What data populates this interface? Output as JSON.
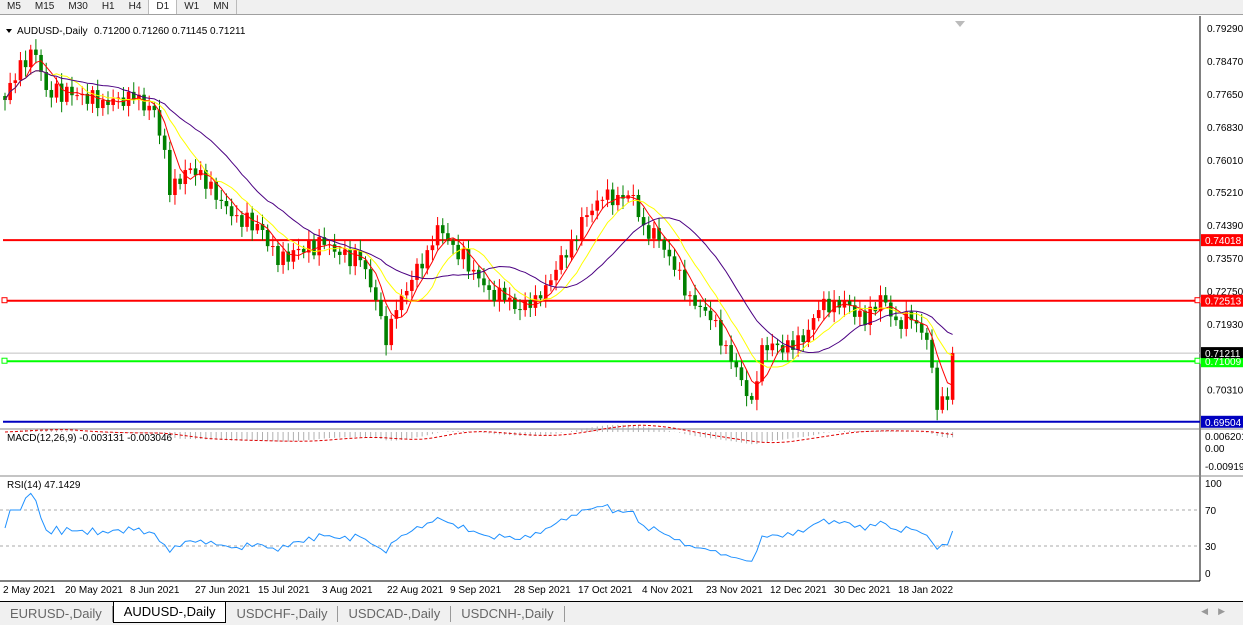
{
  "timeframes": [
    "M5",
    "M15",
    "M30",
    "H1",
    "H4",
    "D1",
    "W1",
    "MN"
  ],
  "selected_timeframe": "D1",
  "header": {
    "symbol": "AUDUSD-,Daily",
    "ohlc": "0.71200 0.71260 0.71145 0.71211"
  },
  "macd_label": "MACD(12,26,9) -0.003131 -0.003046",
  "rsi_label": "RSI(14) 47.1429",
  "tabs": [
    "EURUSD-,Daily",
    "AUDUSD-,Daily",
    "USDCHF-,Daily",
    "USDCAD-,Daily",
    "USDCNH-,Daily"
  ],
  "active_tab": "AUDUSD-,Daily",
  "colors": {
    "up": "#ff0000",
    "down": "#008000",
    "ma_fast": "#ff0000",
    "ma_mid": "#ffff00",
    "ma_slow": "#4b0082",
    "rsi": "#1e90ff"
  },
  "chart_data": {
    "type": "candlestick",
    "price_ticks": [
      "0.79290",
      "0.78470",
      "0.77650",
      "0.76830",
      "0.76010",
      "0.75210",
      "0.74390",
      "0.73570",
      "0.72750",
      "0.71930",
      "0.70310"
    ],
    "date_ticks": [
      "2 May 2021",
      "20 May 2021",
      "8 Jun 2021",
      "27 Jun 2021",
      "15 Jul 2021",
      "3 Aug 2021",
      "22 Aug 2021",
      "9 Sep 2021",
      "28 Sep 2021",
      "17 Oct 2021",
      "4 Nov 2021",
      "23 Nov 2021",
      "12 Dec 2021",
      "30 Dec 2021",
      "18 Jan 2022"
    ],
    "close_anchors": [
      [
        0,
        0.775
      ],
      [
        3,
        0.7849
      ],
      [
        6,
        0.7862
      ],
      [
        8,
        0.7775
      ],
      [
        13,
        0.7762
      ],
      [
        19,
        0.775
      ],
      [
        25,
        0.775
      ],
      [
        29,
        0.7725
      ],
      [
        31,
        0.7626
      ],
      [
        32,
        0.7514
      ],
      [
        35,
        0.7576
      ],
      [
        38,
        0.7576
      ],
      [
        41,
        0.7502
      ],
      [
        45,
        0.7464
      ],
      [
        50,
        0.7427
      ],
      [
        53,
        0.734
      ],
      [
        56,
        0.7377
      ],
      [
        62,
        0.739
      ],
      [
        65,
        0.7365
      ],
      [
        69,
        0.7352
      ],
      [
        72,
        0.7253
      ],
      [
        74,
        0.7141
      ],
      [
        76,
        0.7228
      ],
      [
        79,
        0.7303
      ],
      [
        82,
        0.7377
      ],
      [
        84,
        0.7439
      ],
      [
        87,
        0.739
      ],
      [
        91,
        0.7328
      ],
      [
        94,
        0.7278
      ],
      [
        97,
        0.7253
      ],
      [
        100,
        0.7228
      ],
      [
        103,
        0.7265
      ],
      [
        105,
        0.729
      ],
      [
        107,
        0.7328
      ],
      [
        110,
        0.7402
      ],
      [
        113,
        0.7464
      ],
      [
        116,
        0.7502
      ],
      [
        119,
        0.7514
      ],
      [
        122,
        0.7514
      ],
      [
        124,
        0.7439
      ],
      [
        127,
        0.7402
      ],
      [
        130,
        0.7328
      ],
      [
        133,
        0.7265
      ],
      [
        137,
        0.7203
      ],
      [
        140,
        0.7141
      ],
      [
        143,
        0.7054
      ],
      [
        145,
        0.7005
      ],
      [
        147,
        0.7141
      ],
      [
        150,
        0.7141
      ],
      [
        153,
        0.7129
      ],
      [
        156,
        0.7179
      ],
      [
        158,
        0.7228
      ],
      [
        161,
        0.7253
      ],
      [
        164,
        0.724
      ],
      [
        167,
        0.7191
      ],
      [
        170,
        0.7265
      ],
      [
        173,
        0.7203
      ],
      [
        176,
        0.7203
      ],
      [
        179,
        0.7154
      ],
      [
        181,
        0.698
      ],
      [
        183,
        0.7005
      ],
      [
        184,
        0.71211
      ]
    ],
    "last_price": "0.71211",
    "levels": [
      {
        "value": "0.74018",
        "color": "#ff0000"
      },
      {
        "value": "0.72513",
        "color": "#ff0000"
      },
      {
        "value": "0.71009",
        "color": "#00ff00"
      },
      {
        "value": "0.69504",
        "color": "#0000c0"
      }
    ],
    "macd_ticks": [
      "0.006201",
      "0.00",
      "-0.009197"
    ],
    "rsi_ticks": [
      "100",
      "70",
      "30",
      "0"
    ]
  }
}
